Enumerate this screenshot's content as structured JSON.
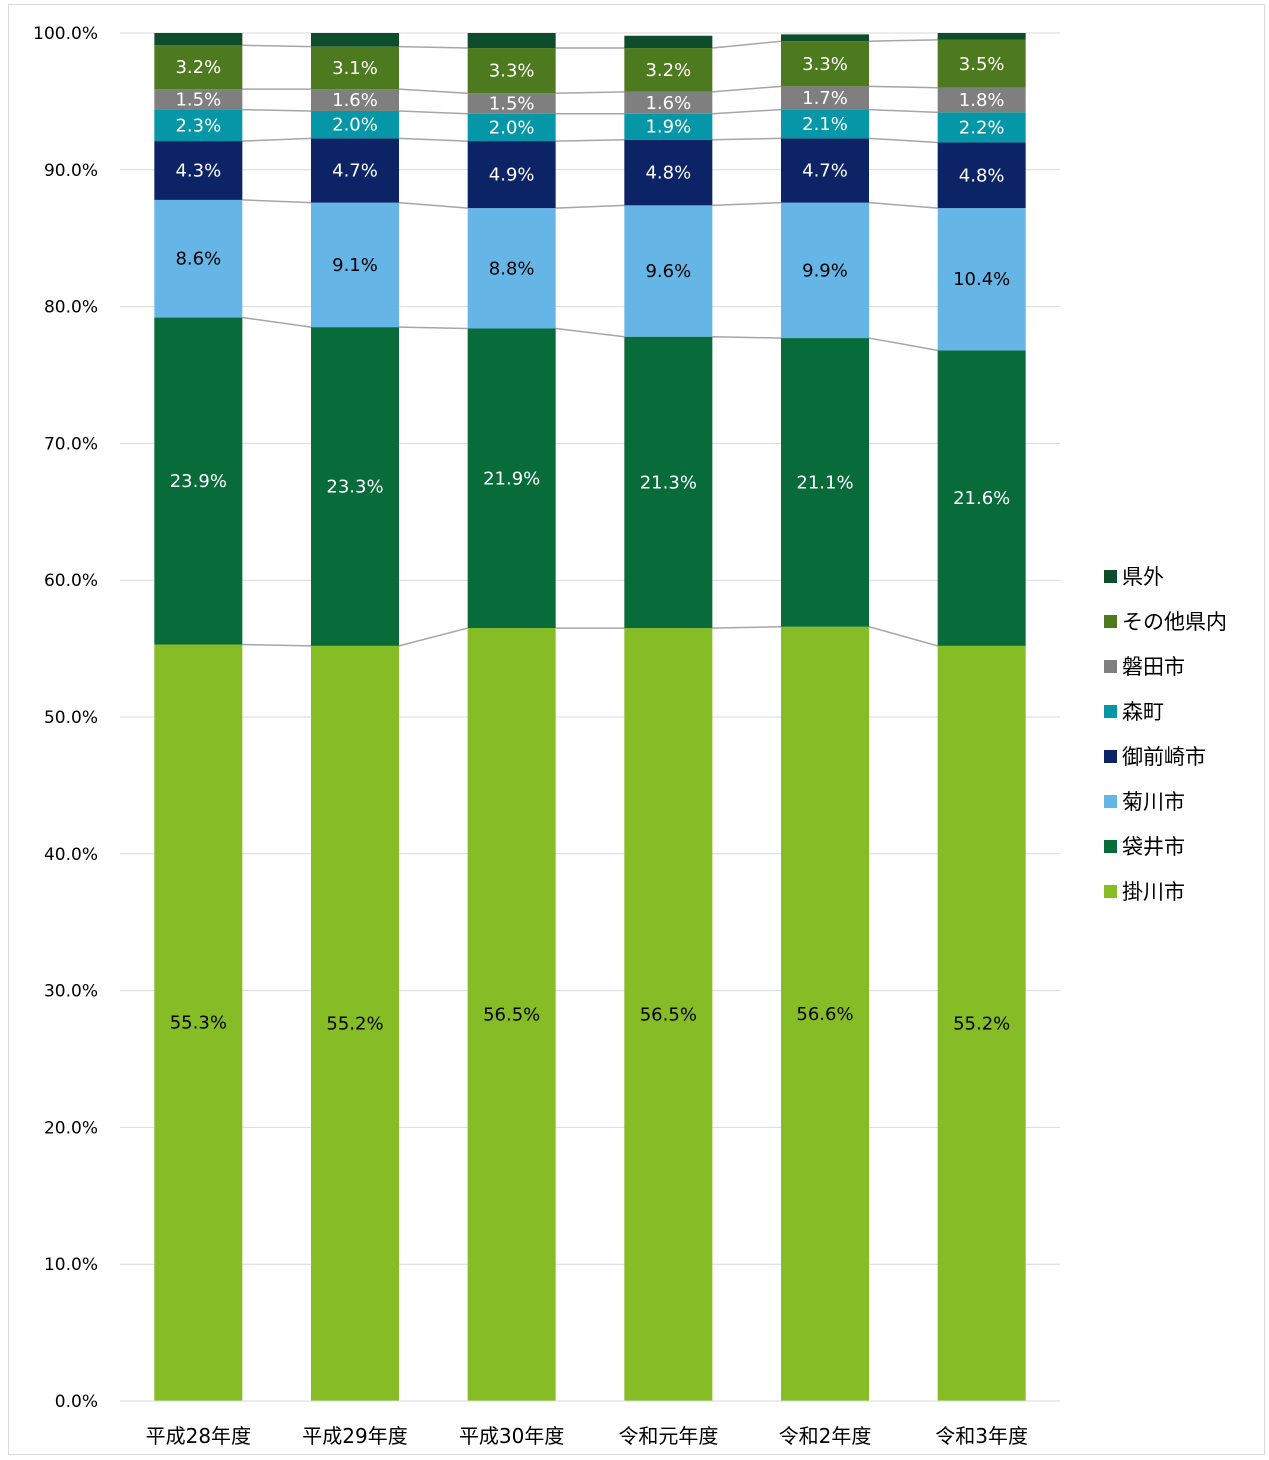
{
  "chart_data": {
    "type": "bar",
    "stacked": true,
    "percent_stacked": true,
    "categories": [
      "平成28年度",
      "平成29年度",
      "平成30年度",
      "令和元年度",
      "令和2年度",
      "令和3年度"
    ],
    "series": [
      {
        "name": "掛川市",
        "color": "#86bc25",
        "values": [
          55.3,
          55.2,
          56.5,
          56.5,
          56.6,
          55.2
        ],
        "labels": [
          "55.3%",
          "55.2%",
          "56.5%",
          "56.5%",
          "56.6%",
          "55.2%"
        ],
        "label_color": "#000000"
      },
      {
        "name": "袋井市",
        "color": "#076b3a",
        "values": [
          23.9,
          23.3,
          21.9,
          21.3,
          21.1,
          21.6
        ],
        "labels": [
          "23.9%",
          "23.3%",
          "21.9%",
          "21.3%",
          "21.1%",
          "21.6%"
        ],
        "label_color": "#ffffff"
      },
      {
        "name": "菊川市",
        "color": "#65b5e6",
        "values": [
          8.6,
          9.1,
          8.8,
          9.6,
          9.9,
          10.4
        ],
        "labels": [
          "8.6%",
          "9.1%",
          "8.8%",
          "9.6%",
          "9.9%",
          "10.4%"
        ],
        "label_color": "#000000"
      },
      {
        "name": "御前崎市",
        "color": "#0c2366",
        "values": [
          4.3,
          4.7,
          4.9,
          4.8,
          4.7,
          4.8
        ],
        "labels": [
          "4.3%",
          "4.7%",
          "4.9%",
          "4.8%",
          "4.7%",
          "4.8%"
        ],
        "label_color": "#ffffff"
      },
      {
        "name": "森町",
        "color": "#0597a7",
        "values": [
          2.3,
          2.0,
          2.0,
          1.9,
          2.1,
          2.2
        ],
        "labels": [
          "2.3%",
          "2.0%",
          "2.0%",
          "1.9%",
          "2.1%",
          "2.2%"
        ],
        "label_color": "#ffffff"
      },
      {
        "name": "磐田市",
        "color": "#7f7f7f",
        "values": [
          1.5,
          1.6,
          1.5,
          1.6,
          1.7,
          1.8
        ],
        "labels": [
          "1.5%",
          "1.6%",
          "1.5%",
          "1.6%",
          "1.7%",
          "1.8%"
        ],
        "label_color": "#ffffff"
      },
      {
        "name": "その他県内",
        "color": "#4e7a1f",
        "values": [
          3.2,
          3.1,
          3.3,
          3.2,
          3.3,
          3.5
        ],
        "labels": [
          "3.2%",
          "3.1%",
          "3.3%",
          "3.2%",
          "3.3%",
          "3.5%"
        ],
        "label_color": "#ffffff"
      },
      {
        "name": "県外",
        "color": "#0d4d2c",
        "values": [
          0.9,
          1.0,
          1.1,
          0.9,
          0.5,
          0.5
        ],
        "labels": [
          "",
          "",
          "",
          "",
          "",
          ""
        ],
        "label_color": "#ffffff"
      }
    ],
    "legend_order": [
      "県外",
      "その他県内",
      "磐田市",
      "森町",
      "御前崎市",
      "菊川市",
      "袋井市",
      "掛川市"
    ],
    "ylim": [
      0,
      100
    ],
    "yticks": [
      "0.0%",
      "10.0%",
      "20.0%",
      "30.0%",
      "40.0%",
      "50.0%",
      "60.0%",
      "70.0%",
      "80.0%",
      "90.0%",
      "100.0%"
    ],
    "grid": true,
    "series_lines": true,
    "legend_position": "right"
  }
}
